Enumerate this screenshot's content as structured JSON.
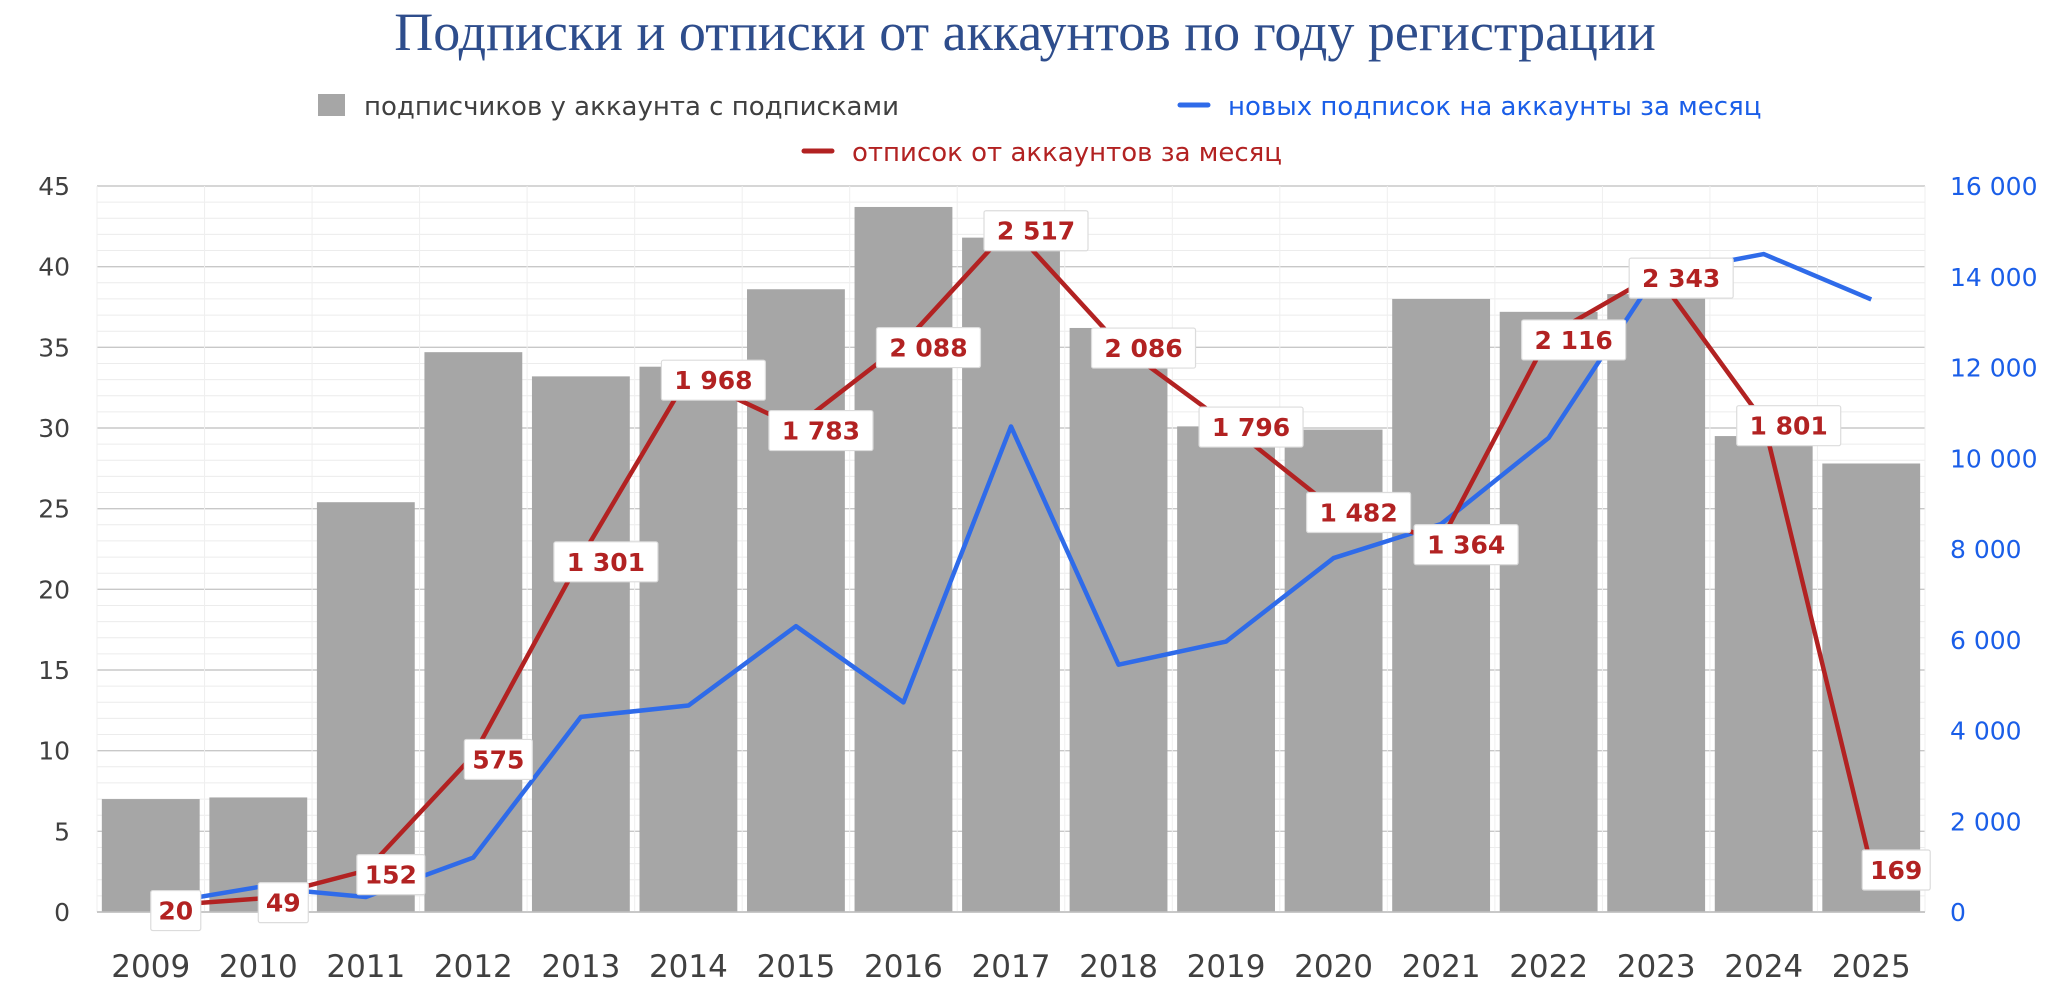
{
  "chart_data": {
    "type": "bar",
    "title": "Подписки и отписки от аккаунтов по году регистрации",
    "categories": [
      "2009",
      "2010",
      "2011",
      "2012",
      "2013",
      "2014",
      "2015",
      "2016",
      "2017",
      "2018",
      "2019",
      "2020",
      "2021",
      "2022",
      "2023",
      "2024",
      "2025"
    ],
    "series": [
      {
        "name": "подписчиков у аккаунта с подписками",
        "type": "bar",
        "axis": "left",
        "color": "#a6a6a6",
        "values": [
          7.0,
          7.1,
          25.4,
          34.7,
          33.2,
          33.8,
          38.6,
          43.7,
          41.8,
          36.2,
          30.1,
          29.9,
          38.0,
          37.2,
          38.3,
          29.5,
          27.8
        ]
      },
      {
        "name": "новых подписок на аккаунты за месяц",
        "type": "line",
        "axis": "right",
        "color": "#2f6be9",
        "values": [
          150,
          550,
          330,
          1200,
          4300,
          4550,
          6300,
          4620,
          10700,
          5450,
          5960,
          7800,
          8550,
          10450,
          14050,
          14500,
          13500
        ]
      },
      {
        "name": "отписок от аккаунтов за месяц",
        "type": "line",
        "axis": "right",
        "color": "#b22222",
        "scale_factor": 6,
        "values": [
          20,
          49,
          152,
          575,
          1301,
          1968,
          1783,
          2088,
          2517,
          2086,
          1796,
          1482,
          1364,
          2116,
          2343,
          1801,
          169
        ],
        "labels": [
          "20",
          "49",
          "152",
          "575",
          "1 301",
          "1 968",
          "1 783",
          "2 088",
          "2 517",
          "2 086",
          "1 796",
          "1 482",
          "1 364",
          "2 116",
          "2 343",
          "1 801",
          "169"
        ]
      }
    ],
    "left_axis": {
      "min": 0,
      "max": 45,
      "ticks": [
        "0",
        "5",
        "10",
        "15",
        "20",
        "25",
        "30",
        "35",
        "40",
        "45"
      ]
    },
    "right_axis": {
      "min": 0,
      "max": 16000,
      "ticks": [
        "0",
        "2 000",
        "4 000",
        "6 000",
        "8 000",
        "10 000",
        "12 000",
        "14 000",
        "16 000"
      ],
      "color": "#1a5ee8"
    },
    "grid": true,
    "legend": "top",
    "colors": {
      "title": "#2e4d8c",
      "bar": "#a6a6a6",
      "blue_line": "#2f6be9",
      "red_line": "#b22222",
      "left_ticks": "#404040"
    }
  }
}
